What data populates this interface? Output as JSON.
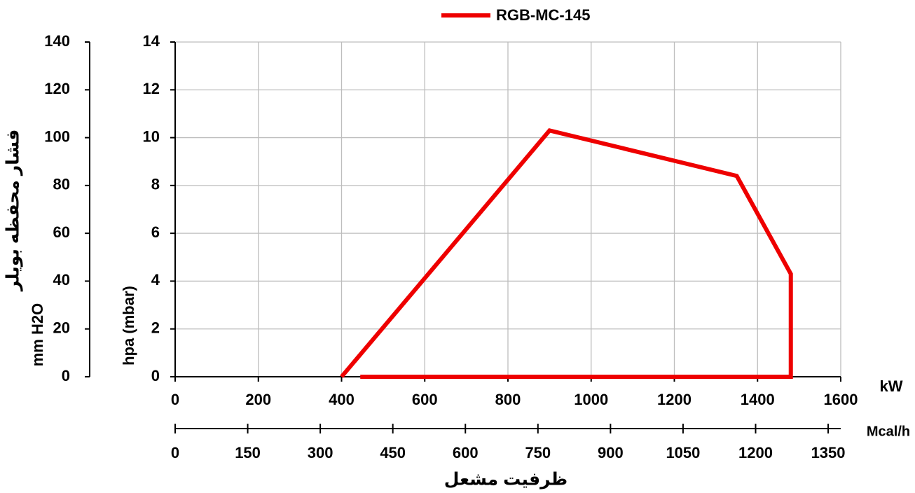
{
  "chart_data": {
    "type": "line",
    "x": [
      400,
      900,
      1350,
      1480,
      1480,
      445
    ],
    "series": [
      {
        "name": "RGB-MC-145",
        "color": "#ee0000",
        "values": [
          0,
          10.3,
          8.4,
          4.3,
          0,
          0
        ]
      }
    ],
    "xlim": [
      0,
      1600
    ],
    "xticks": [
      0,
      200,
      400,
      600,
      800,
      1000,
      1200,
      1400,
      1600
    ],
    "x_label": "kW",
    "x2lim": [
      0,
      1376
    ],
    "x2ticks": [
      0,
      150,
      300,
      450,
      600,
      750,
      900,
      1050,
      1200,
      1350
    ],
    "x2_label": "Mcal/h",
    "x_title": "ظرفیت مشعل",
    "ylim": [
      0,
      14
    ],
    "yticks": [
      0,
      2,
      4,
      6,
      8,
      10,
      12,
      14
    ],
    "y_label": "hpa (mbar)",
    "y2lim": [
      0,
      140
    ],
    "y2ticks": [
      0,
      20,
      40,
      60,
      80,
      100,
      120,
      140
    ],
    "y2_label": "mm H2O",
    "y2_title": "فشار محفظه بویلر",
    "grid": true,
    "legend_position": "top"
  }
}
